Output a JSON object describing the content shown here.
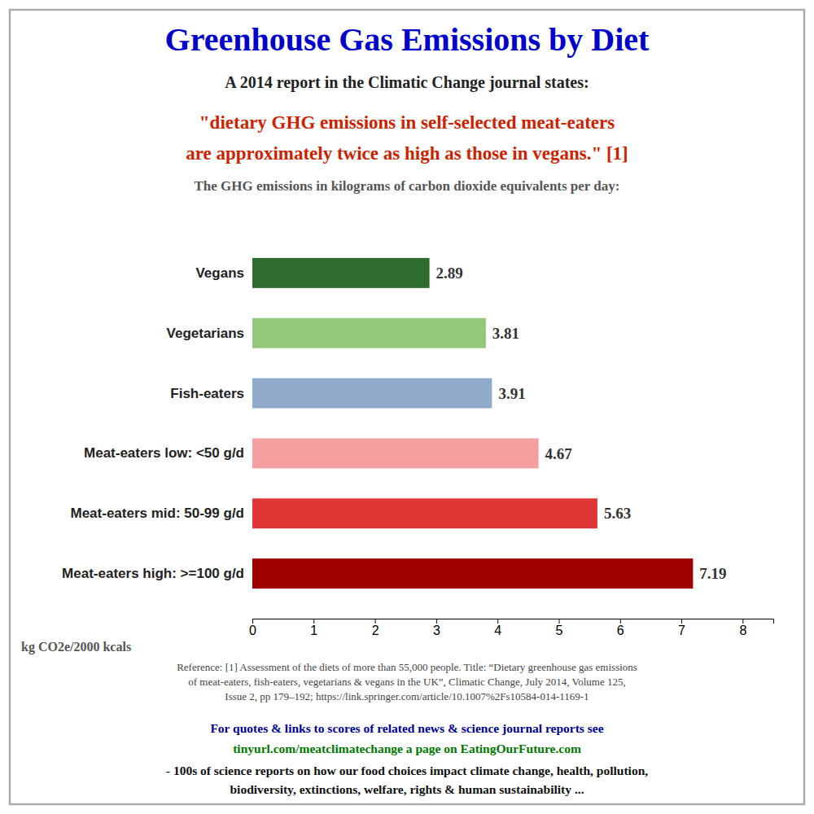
{
  "chart_data": {
    "type": "bar",
    "orientation": "horizontal",
    "title": "Greenhouse Gas Emissions by Diet",
    "subtitle": "A 2014 report in the Climatic Change journal states:",
    "annotations": [
      "\"dietary GHG emissions in self-selected meat-eaters",
      "are approximately twice as high as those in vegans.\" [1]",
      "The GHG emissions in kilograms of carbon dioxide equivalents per day:",
      "Reference: [1] Assessment of the diets of more than 55,000 people. Title: “Dietary greenhouse gas emissions",
      "of meat-eaters, fish-eaters, vegetarians & vegans in the UK”, Climatic Change, July 2014, Volume 125,",
      "Issue 2, pp 179–192; https://link.springer.com/article/10.1007%2Fs10584-014-1169-1",
      "For quotes & links to scores of related news & science journal reports see",
      "tinyurl.com/meatclimatechange a page on EatingOurFuture.com",
      "- 100s of science reports on how our food choices impact climate change, health, pollution,",
      "biodiversity, extinctions, welfare, rights & human sustainability ..."
    ],
    "categories": [
      "Vegans",
      "Vegetarians",
      "Fish-eaters",
      "Meat-eaters low: <50 g/d",
      "Meat-eaters mid: 50-99 g/d",
      "Meat-eaters high: >=100 g/d"
    ],
    "values": [
      2.89,
      3.81,
      3.91,
      4.67,
      5.63,
      7.19
    ],
    "colors": [
      "#2e6b2e",
      "#92c87a",
      "#8faacb",
      "#f4a0a0",
      "#e03535",
      "#9e0000"
    ],
    "xlabel": "kg CO2e/2000 kcals",
    "xlim": [
      0,
      8.5
    ],
    "xticks": [
      0,
      1,
      2,
      3,
      4,
      5,
      6,
      7,
      8
    ],
    "data_labels": true,
    "grid": false
  }
}
